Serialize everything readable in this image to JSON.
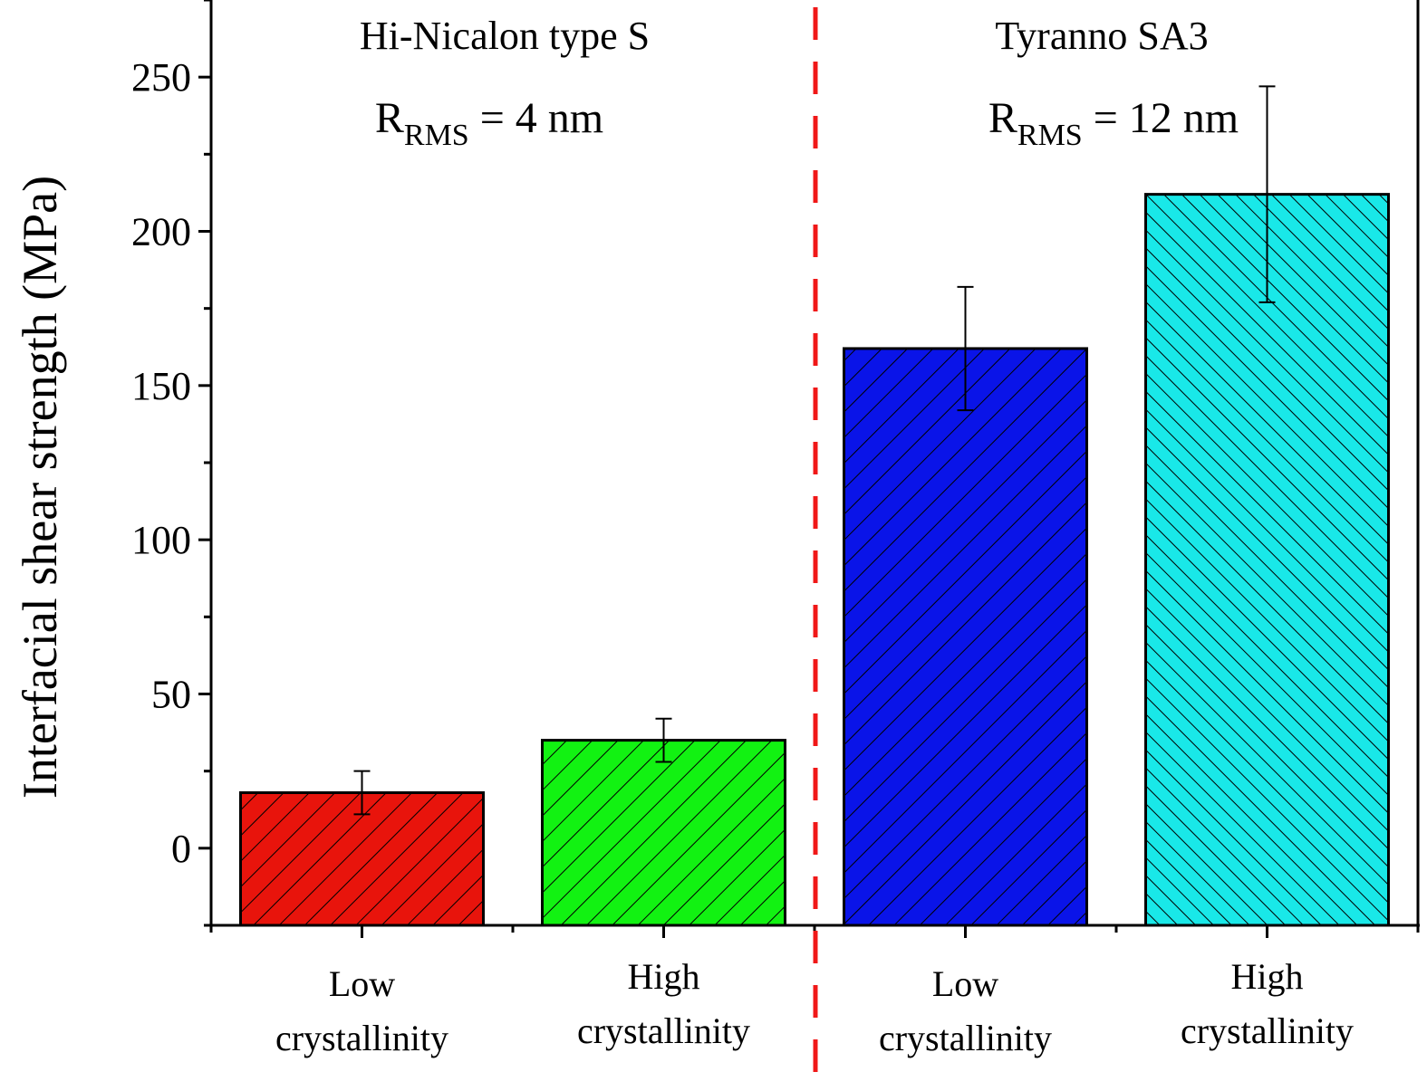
{
  "chart_data": {
    "type": "bar",
    "ylabel": "Interfacial shear strength (MPa)",
    "xlabel": "",
    "ylim": [
      -25,
      275
    ],
    "yticks": [
      0,
      50,
      100,
      150,
      200,
      250
    ],
    "grid": false,
    "groups": [
      {
        "title": "Hi-Nicalon type S",
        "rms": {
          "base": "R",
          "sub": "RMS",
          "rest": " = 4 nm"
        }
      },
      {
        "title": "Tyranno SA3",
        "rms": {
          "base": "R",
          "sub": "RMS",
          "rest": " = 12 nm"
        }
      }
    ],
    "bars": [
      {
        "group": 0,
        "label_lines": [
          "Low",
          "crystallinity"
        ],
        "value": 18,
        "err_low": 11,
        "err_high": 25,
        "color": "#e8140c",
        "hatch": "coarse"
      },
      {
        "group": 0,
        "label_lines": [
          "High",
          "crystallinity"
        ],
        "value": 35,
        "err_low": 28,
        "err_high": 42,
        "color": "#12f212",
        "hatch": "coarse"
      },
      {
        "group": 1,
        "label_lines": [
          "Low",
          "crystallinity"
        ],
        "value": 162,
        "err_low": 142,
        "err_high": 182,
        "color": "#0a14e8",
        "hatch": "coarse"
      },
      {
        "group": 1,
        "label_lines": [
          "High",
          "crystallinity"
        ],
        "value": 212,
        "err_low": 177,
        "err_high": 247,
        "color": "#19e8e8",
        "hatch": "fine-reverse"
      }
    ],
    "divider_color": "#f01818"
  }
}
